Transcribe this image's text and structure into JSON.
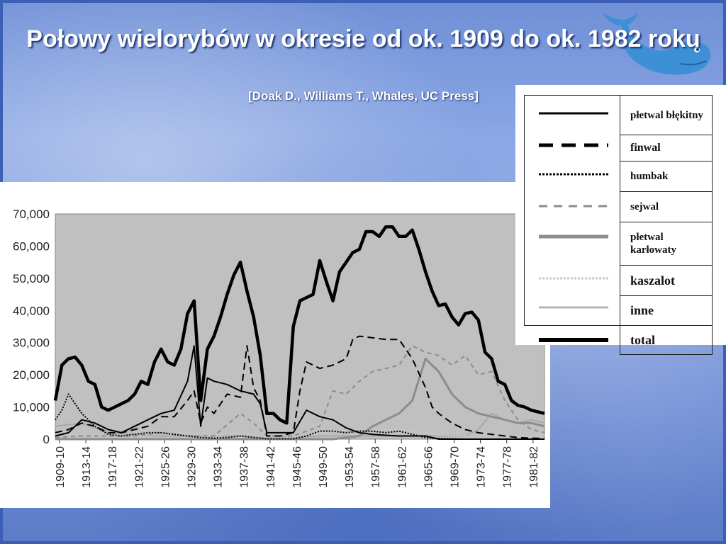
{
  "title": "Połowy wielorybów w okresie od ok. 1909 do ok. 1982 roku",
  "subtitle": "[Doak D., Williams T., Whales, UC Press]",
  "colors": {
    "plot_bg": "#c0c0c0",
    "line_dark": "#000000",
    "line_mid": "#8c8c8c",
    "line_light": "#a8a8a8",
    "line_pale": "#c8c8c8"
  },
  "legend": [
    {
      "label": "płetwal błękitny",
      "style": "solid-thin"
    },
    {
      "label": "finwal",
      "style": "dash-bold"
    },
    {
      "label": "humbak",
      "style": "dotted-dark"
    },
    {
      "label": "sejwal",
      "style": "dash-gray"
    },
    {
      "label": "płetwal karłowaty",
      "style": "solid-gray"
    },
    {
      "label": "kaszalot",
      "style": "dotted-light"
    },
    {
      "label": "inne",
      "style": "solid-light"
    },
    {
      "label": "total",
      "style": "solid-bold"
    }
  ],
  "chart_data": {
    "type": "line",
    "ylim": [
      0,
      70000
    ],
    "yticks": [
      "0",
      "10,000",
      "20,000",
      "30,000",
      "40,000",
      "50,000",
      "60,000",
      "70,000"
    ],
    "ytick_values": [
      0,
      10000,
      20000,
      30000,
      40000,
      50000,
      60000,
      70000
    ],
    "xtick_labels": [
      "1909-10",
      "1913-14",
      "1917-18",
      "1921-22",
      "1925-26",
      "1929-30",
      "1933-34",
      "1937-38",
      "1941-42",
      "1945-46",
      "1949-50",
      "1953-54",
      "1957-58",
      "1961-62",
      "1965-66",
      "1969-70",
      "1973-74",
      "1977-78",
      "1981-82"
    ],
    "x_start": 1909,
    "x_end": 1983,
    "series": [
      {
        "name": "total",
        "style": "solid-bold",
        "x": [
          1909,
          1910,
          1911,
          1912,
          1913,
          1914,
          1915,
          1916,
          1917,
          1918,
          1919,
          1920,
          1921,
          1922,
          1923,
          1924,
          1925,
          1926,
          1927,
          1928,
          1929,
          1930,
          1931,
          1932,
          1933,
          1934,
          1935,
          1936,
          1937,
          1938,
          1939,
          1940,
          1941,
          1942,
          1943,
          1944,
          1945,
          1946,
          1947,
          1948,
          1949,
          1950,
          1951,
          1952,
          1953,
          1954,
          1955,
          1956,
          1957,
          1958,
          1959,
          1960,
          1961,
          1962,
          1963,
          1964,
          1965,
          1966,
          1967,
          1968,
          1969,
          1970,
          1971,
          1972,
          1973,
          1974,
          1975,
          1976,
          1977,
          1978,
          1979,
          1980,
          1981,
          1982,
          1983
        ],
        "values": [
          12000,
          23000,
          25000,
          25500,
          23000,
          18000,
          17000,
          10000,
          9000,
          10000,
          11000,
          12000,
          14000,
          18000,
          17000,
          24000,
          28000,
          24000,
          23000,
          28000,
          39000,
          43000,
          12000,
          28000,
          32000,
          38000,
          45000,
          51000,
          55000,
          46000,
          38000,
          26000,
          8000,
          8000,
          6000,
          5000,
          35000,
          43000,
          44000,
          45000,
          55500,
          49000,
          43000,
          52000,
          55000,
          58000,
          59000,
          64500,
          64500,
          63000,
          66000,
          66000,
          63000,
          63000,
          65000,
          59000,
          52000,
          46000,
          41500,
          42000,
          38000,
          35500,
          39000,
          39500,
          37000,
          27000,
          25000,
          18000,
          17000,
          12000,
          10500,
          10000,
          9000,
          8500,
          8000
        ]
      },
      {
        "name": "płetwal błękitny",
        "style": "solid-thin",
        "x": [
          1909,
          1911,
          1913,
          1915,
          1917,
          1919,
          1921,
          1923,
          1925,
          1927,
          1929,
          1930,
          1931,
          1932,
          1933,
          1935,
          1937,
          1939,
          1940,
          1941,
          1942,
          1945,
          1947,
          1949,
          1951,
          1953,
          1955,
          1957,
          1959,
          1961,
          1963,
          1965,
          1967,
          1969,
          1971,
          1973,
          1975,
          1977,
          1979,
          1981,
          1983
        ],
        "values": [
          1000,
          2000,
          6000,
          5000,
          3000,
          2000,
          4000,
          6000,
          8000,
          9000,
          18000,
          29000,
          4000,
          19000,
          18000,
          17000,
          15000,
          14000,
          11000,
          2000,
          2000,
          2000,
          9000,
          7000,
          6000,
          3500,
          2000,
          1500,
          1200,
          1000,
          1000,
          1000,
          0,
          0,
          0,
          0,
          0,
          0,
          0,
          0,
          0
        ]
      },
      {
        "name": "finwal",
        "style": "dash-bold",
        "x": [
          1909,
          1911,
          1913,
          1915,
          1917,
          1919,
          1921,
          1923,
          1925,
          1927,
          1929,
          1930,
          1931,
          1932,
          1933,
          1935,
          1937,
          1938,
          1939,
          1940,
          1941,
          1942,
          1943,
          1945,
          1946,
          1947,
          1949,
          1951,
          1953,
          1954,
          1955,
          1957,
          1959,
          1961,
          1962,
          1963,
          1965,
          1966,
          1967,
          1969,
          1971,
          1973,
          1975,
          1977,
          1979,
          1981,
          1983
        ],
        "values": [
          2000,
          3000,
          5000,
          4000,
          2000,
          2000,
          3000,
          4000,
          7000,
          7000,
          12000,
          15000,
          5000,
          10000,
          8000,
          14000,
          13000,
          29000,
          16000,
          12000,
          1000,
          1000,
          1000,
          2000,
          15000,
          24000,
          22000,
          23000,
          25000,
          31000,
          32000,
          31500,
          31000,
          31000,
          28000,
          25000,
          16000,
          10000,
          8000,
          5000,
          3000,
          2000,
          1500,
          1000,
          500,
          300,
          200
        ]
      },
      {
        "name": "humbak",
        "style": "dotted-dark",
        "x": [
          1909,
          1910,
          1911,
          1913,
          1915,
          1917,
          1919,
          1921,
          1923,
          1925,
          1927,
          1929,
          1931,
          1933,
          1935,
          1937,
          1939,
          1941,
          1945,
          1947,
          1949,
          1951,
          1953,
          1955,
          1957,
          1959,
          1961,
          1963,
          1965,
          1967,
          1969,
          1971,
          1975,
          1983
        ],
        "values": [
          6000,
          9000,
          14000,
          8000,
          4000,
          1500,
          1000,
          1500,
          2000,
          2000,
          1500,
          1000,
          500,
          300,
          500,
          1000,
          500,
          100,
          100,
          1000,
          2500,
          2500,
          2000,
          2500,
          2500,
          2000,
          2500,
          1500,
          500,
          200,
          100,
          0,
          0,
          0
        ]
      },
      {
        "name": "sejwal",
        "style": "dash-gray",
        "x": [
          1909,
          1913,
          1917,
          1921,
          1925,
          1929,
          1933,
          1937,
          1939,
          1941,
          1945,
          1949,
          1951,
          1953,
          1955,
          1957,
          1959,
          1961,
          1963,
          1965,
          1967,
          1969,
          1971,
          1973,
          1975,
          1977,
          1979,
          1981,
          1983
        ],
        "values": [
          500,
          1000,
          1000,
          1000,
          2000,
          1000,
          1000,
          8000,
          5000,
          1000,
          1000,
          4000,
          15000,
          14000,
          18000,
          21000,
          22000,
          23000,
          29000,
          27000,
          26000,
          23000,
          26000,
          20000,
          21000,
          12000,
          6000,
          3000,
          2000
        ]
      },
      {
        "name": "płetwal karłowaty",
        "style": "solid-gray",
        "x": [
          1909,
          1945,
          1951,
          1953,
          1955,
          1957,
          1959,
          1961,
          1963,
          1965,
          1967,
          1969,
          1971,
          1973,
          1975,
          1977,
          1979,
          1981,
          1983
        ],
        "values": [
          0,
          0,
          0,
          500,
          1000,
          4000,
          6000,
          8000,
          12000,
          25000,
          21000,
          14000,
          10000,
          8000,
          7000,
          6000,
          5000,
          5000,
          4000
        ]
      },
      {
        "name": "kaszalot",
        "style": "dotted-light",
        "x": [
          1909,
          1913,
          1917,
          1921,
          1925,
          1929,
          1931,
          1933,
          1937,
          1939,
          1941,
          1945,
          1949,
          1953,
          1957,
          1961,
          1965,
          1969,
          1973,
          1977,
          1981,
          1983
        ],
        "values": [
          1500,
          1500,
          1000,
          1000,
          1500,
          2000,
          1000,
          1000,
          2000,
          1500,
          500,
          500,
          2000,
          3000,
          3000,
          3000,
          2000,
          1000,
          1000,
          1000,
          1000,
          1000
        ]
      },
      {
        "name": "inne",
        "style": "solid-light",
        "x": [
          1909,
          1913,
          1917,
          1921,
          1925,
          1929,
          1933,
          1937,
          1941,
          1945,
          1949,
          1953,
          1957,
          1961,
          1965,
          1969,
          1971,
          1973,
          1975,
          1977,
          1979,
          1981,
          1983
        ],
        "values": [
          4000,
          5000,
          2000,
          1500,
          1000,
          1000,
          1000,
          1000,
          500,
          500,
          1000,
          1000,
          1000,
          1000,
          1000,
          1000,
          1000,
          3000,
          8000,
          6000,
          5000,
          6000,
          5000
        ]
      }
    ]
  }
}
